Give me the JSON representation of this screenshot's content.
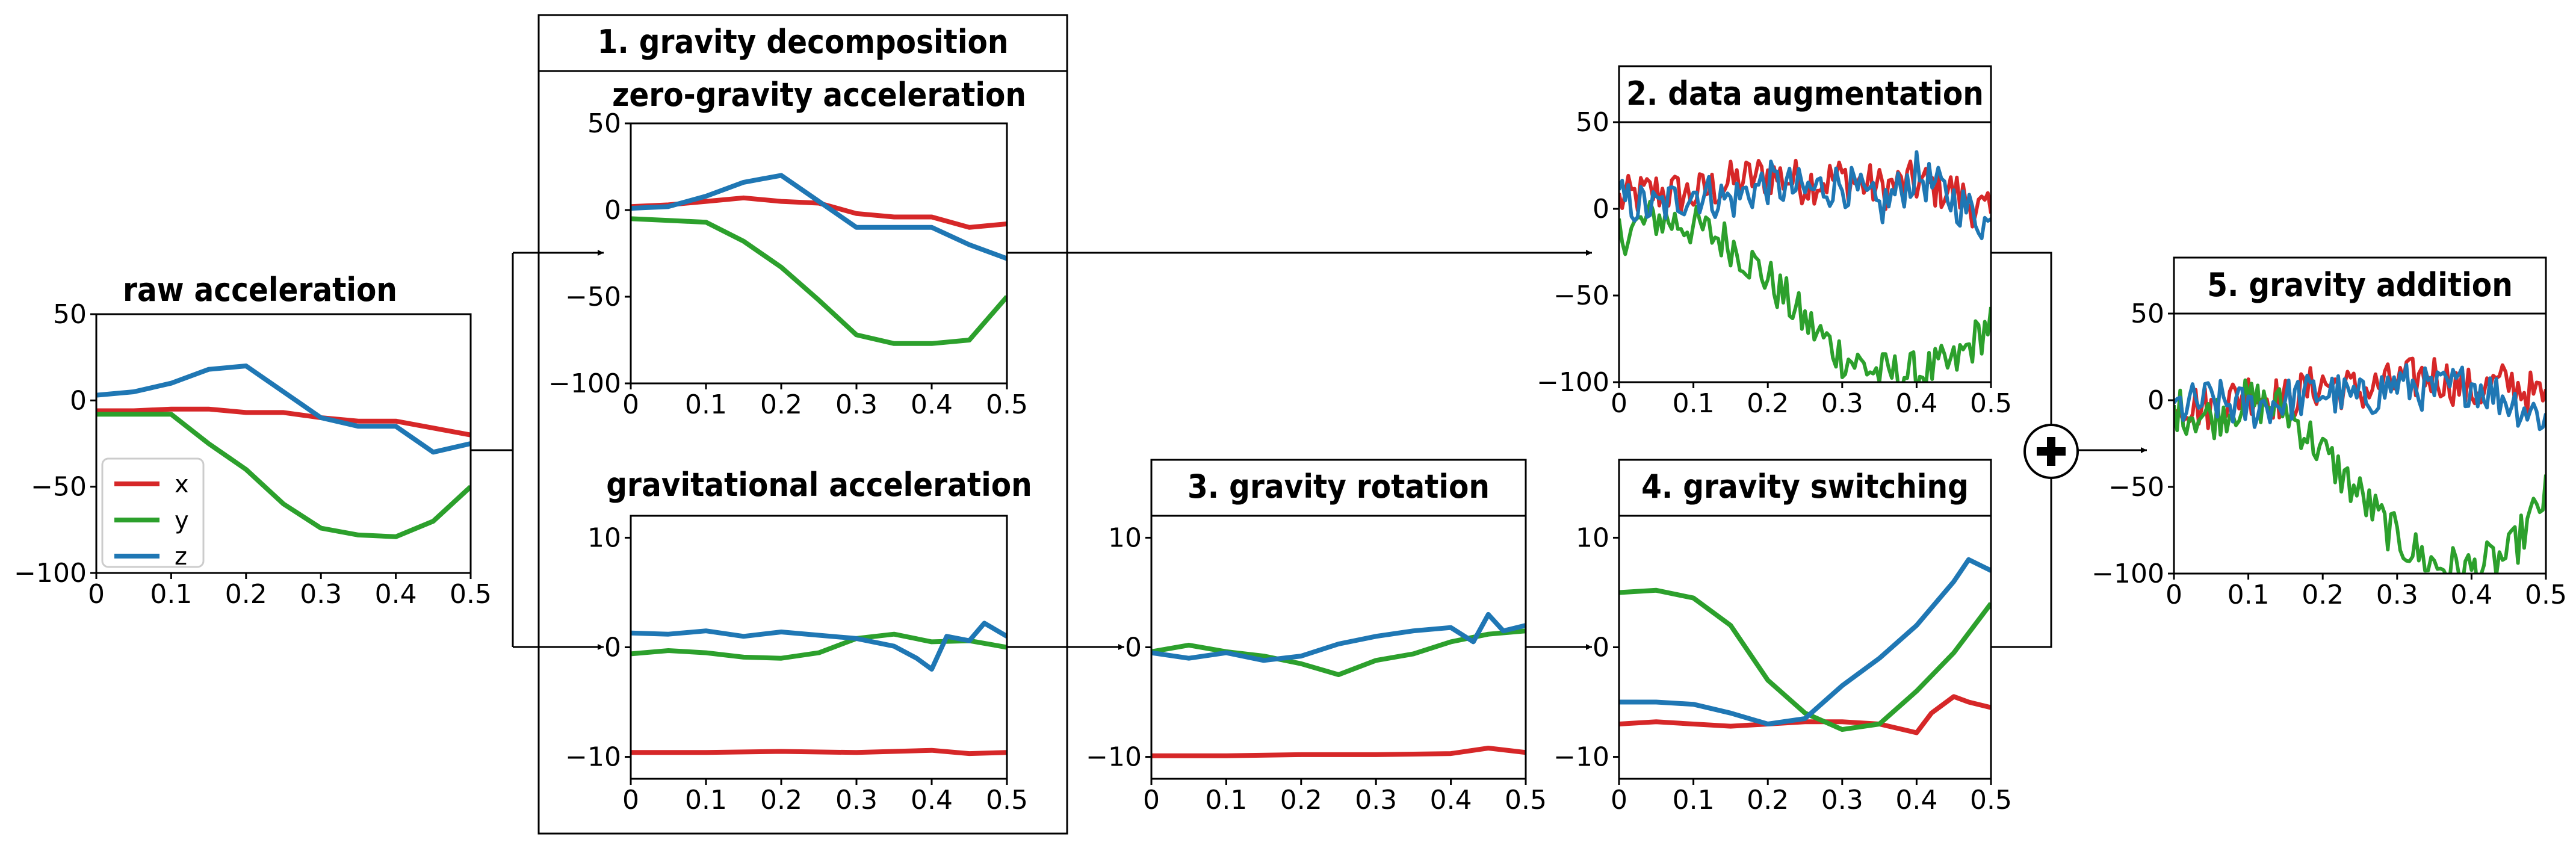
{
  "labels": {
    "raw_title": "raw acceleration",
    "gd_box_title": "1. gravity decomposition",
    "zero_g_title": "zero-gravity acceleration",
    "grav_title": "gravitational acceleration",
    "rot_title": "3. gravity rotation",
    "aug_title": "2. data augmentation",
    "switch_title": "4. gravity switching",
    "add_title": "5. gravity addition",
    "plus_symbol": "+"
  },
  "colors": {
    "x": "#d62728",
    "y": "#2ca02c",
    "z": "#1f77b4"
  },
  "chart_data": [
    {
      "id": "raw",
      "type": "line",
      "title": "raw acceleration",
      "xlim": [
        0,
        0.5
      ],
      "ylim": [
        -100,
        50
      ],
      "xticks": [
        "0",
        "0.1",
        "0.2",
        "0.3",
        "0.4",
        "0.5"
      ],
      "yticks": [
        {
          "v": 50,
          "label": "50"
        },
        {
          "v": 0,
          "label": "0"
        },
        {
          "v": -50,
          "label": "−50"
        },
        {
          "v": -100,
          "label": "−100"
        }
      ],
      "legend": [
        "x",
        "y",
        "z"
      ],
      "series": [
        {
          "name": "x",
          "x": [
            0,
            0.05,
            0.1,
            0.15,
            0.2,
            0.25,
            0.3,
            0.35,
            0.4,
            0.45,
            0.5
          ],
          "values": [
            -6,
            -6,
            -5,
            -5,
            -7,
            -7,
            -10,
            -12,
            -12,
            -16,
            -20
          ]
        },
        {
          "name": "y",
          "x": [
            0,
            0.05,
            0.1,
            0.15,
            0.2,
            0.25,
            0.3,
            0.35,
            0.4,
            0.45,
            0.5
          ],
          "values": [
            -8,
            -8,
            -8,
            -25,
            -40,
            -60,
            -74,
            -78,
            -79,
            -70,
            -50
          ]
        },
        {
          "name": "z",
          "x": [
            0,
            0.05,
            0.1,
            0.15,
            0.2,
            0.25,
            0.3,
            0.35,
            0.4,
            0.45,
            0.5
          ],
          "values": [
            3,
            5,
            10,
            18,
            20,
            5,
            -10,
            -15,
            -15,
            -30,
            -25
          ]
        }
      ]
    },
    {
      "id": "zero_g",
      "type": "line",
      "title": "zero-gravity acceleration",
      "xlim": [
        0,
        0.5
      ],
      "ylim": [
        -100,
        50
      ],
      "xticks": [
        "0",
        "0.1",
        "0.2",
        "0.3",
        "0.4",
        "0.5"
      ],
      "yticks": [
        {
          "v": 50,
          "label": "50"
        },
        {
          "v": 0,
          "label": "0"
        },
        {
          "v": -50,
          "label": "−50"
        },
        {
          "v": -100,
          "label": "−100"
        }
      ],
      "series": [
        {
          "name": "x",
          "x": [
            0,
            0.05,
            0.1,
            0.15,
            0.2,
            0.25,
            0.3,
            0.35,
            0.4,
            0.45,
            0.5
          ],
          "values": [
            2,
            3,
            5,
            7,
            5,
            4,
            -2,
            -4,
            -4,
            -10,
            -8
          ]
        },
        {
          "name": "y",
          "x": [
            0,
            0.05,
            0.1,
            0.15,
            0.2,
            0.25,
            0.3,
            0.35,
            0.4,
            0.45,
            0.5
          ],
          "values": [
            -5,
            -6,
            -7,
            -18,
            -33,
            -52,
            -72,
            -77,
            -77,
            -75,
            -50
          ]
        },
        {
          "name": "z",
          "x": [
            0,
            0.05,
            0.1,
            0.15,
            0.2,
            0.25,
            0.3,
            0.35,
            0.4,
            0.45,
            0.5
          ],
          "values": [
            1,
            2,
            8,
            16,
            20,
            5,
            -10,
            -10,
            -10,
            -20,
            -28
          ]
        }
      ]
    },
    {
      "id": "grav",
      "type": "line",
      "title": "gravitational acceleration",
      "xlim": [
        0,
        0.5
      ],
      "ylim": [
        -12,
        12
      ],
      "xticks": [
        "0",
        "0.1",
        "0.2",
        "0.3",
        "0.4",
        "0.5"
      ],
      "yticks": [
        {
          "v": 10,
          "label": "10"
        },
        {
          "v": 0,
          "label": "0"
        },
        {
          "v": -10,
          "label": "−10"
        }
      ],
      "series": [
        {
          "name": "x",
          "x": [
            0,
            0.1,
            0.2,
            0.3,
            0.4,
            0.45,
            0.5
          ],
          "values": [
            -9.6,
            -9.6,
            -9.5,
            -9.6,
            -9.4,
            -9.7,
            -9.6
          ]
        },
        {
          "name": "y",
          "x": [
            0,
            0.05,
            0.1,
            0.15,
            0.2,
            0.25,
            0.3,
            0.35,
            0.4,
            0.45,
            0.5
          ],
          "values": [
            -0.6,
            -0.3,
            -0.5,
            -0.9,
            -1.0,
            -0.5,
            0.8,
            1.2,
            0.5,
            0.6,
            0
          ]
        },
        {
          "name": "z",
          "x": [
            0,
            0.05,
            0.1,
            0.15,
            0.2,
            0.25,
            0.3,
            0.35,
            0.38,
            0.4,
            0.42,
            0.45,
            0.47,
            0.5
          ],
          "values": [
            1.3,
            1.2,
            1.5,
            1.0,
            1.4,
            1.1,
            0.8,
            0.1,
            -1.0,
            -2.0,
            1.0,
            0.6,
            2.2,
            1.0
          ]
        }
      ]
    },
    {
      "id": "rot",
      "type": "line",
      "title": "3. gravity rotation",
      "xlim": [
        0,
        0.5
      ],
      "ylim": [
        -12,
        12
      ],
      "xticks": [
        "0",
        "0.1",
        "0.2",
        "0.3",
        "0.4",
        "0.5"
      ],
      "yticks": [
        {
          "v": 10,
          "label": "10"
        },
        {
          "v": 0,
          "label": "0"
        },
        {
          "v": -10,
          "label": "−10"
        }
      ],
      "series": [
        {
          "name": "x",
          "x": [
            0,
            0.1,
            0.2,
            0.3,
            0.4,
            0.45,
            0.5
          ],
          "values": [
            -9.9,
            -9.9,
            -9.8,
            -9.8,
            -9.7,
            -9.2,
            -9.6
          ]
        },
        {
          "name": "y",
          "x": [
            0,
            0.05,
            0.1,
            0.15,
            0.2,
            0.25,
            0.3,
            0.35,
            0.4,
            0.45,
            0.5
          ],
          "values": [
            -0.4,
            0.2,
            -0.4,
            -0.8,
            -1.5,
            -2.5,
            -1.2,
            -0.6,
            0.5,
            1.2,
            1.5
          ]
        },
        {
          "name": "z",
          "x": [
            0,
            0.05,
            0.1,
            0.15,
            0.2,
            0.25,
            0.3,
            0.35,
            0.4,
            0.43,
            0.45,
            0.47,
            0.5
          ],
          "values": [
            -0.5,
            -1.0,
            -0.5,
            -1.2,
            -0.8,
            0.3,
            1.0,
            1.5,
            1.8,
            0.5,
            3.0,
            1.5,
            2.0
          ]
        }
      ]
    },
    {
      "id": "aug",
      "type": "line",
      "title": "2. data augmentation",
      "xlim": [
        0,
        0.5
      ],
      "ylim": [
        -100,
        50
      ],
      "xticks": [
        "0",
        "0.1",
        "0.2",
        "0.3",
        "0.4",
        "0.5"
      ],
      "yticks": [
        {
          "v": 50,
          "label": "50"
        },
        {
          "v": 0,
          "label": "0"
        },
        {
          "v": -50,
          "label": "−50"
        },
        {
          "v": -100,
          "label": "−100"
        }
      ],
      "series": [
        {
          "name": "x",
          "x": [
            0,
            0.05,
            0.1,
            0.15,
            0.2,
            0.25,
            0.3,
            0.35,
            0.4,
            0.45,
            0.5
          ],
          "values": [
            5,
            10,
            8,
            15,
            20,
            15,
            18,
            12,
            15,
            10,
            -5
          ]
        },
        {
          "name": "y",
          "x": [
            0,
            0.05,
            0.1,
            0.15,
            0.2,
            0.25,
            0.3,
            0.35,
            0.4,
            0.45,
            0.5
          ],
          "values": [
            -15,
            -5,
            -10,
            -20,
            -40,
            -65,
            -85,
            -95,
            -95,
            -90,
            -65
          ]
        },
        {
          "name": "z",
          "x": [
            0,
            0.05,
            0.1,
            0.15,
            0.2,
            0.25,
            0.3,
            0.35,
            0.4,
            0.45,
            0.5
          ],
          "values": [
            5,
            0,
            10,
            5,
            15,
            10,
            15,
            0,
            20,
            5,
            -10
          ]
        }
      ]
    },
    {
      "id": "switch",
      "type": "line",
      "title": "4. gravity switching",
      "xlim": [
        0,
        0.5
      ],
      "ylim": [
        -12,
        12
      ],
      "xticks": [
        "0",
        "0.1",
        "0.2",
        "0.3",
        "0.4",
        "0.5"
      ],
      "yticks": [
        {
          "v": 10,
          "label": "10"
        },
        {
          "v": 0,
          "label": "0"
        },
        {
          "v": -10,
          "label": "−10"
        }
      ],
      "series": [
        {
          "name": "x",
          "x": [
            0,
            0.05,
            0.1,
            0.15,
            0.2,
            0.25,
            0.3,
            0.35,
            0.4,
            0.42,
            0.45,
            0.47,
            0.5
          ],
          "values": [
            -7,
            -6.8,
            -7,
            -7.2,
            -7,
            -6.8,
            -6.8,
            -7,
            -7.8,
            -6,
            -4.5,
            -5,
            -5.5
          ]
        },
        {
          "name": "y",
          "x": [
            0,
            0.05,
            0.1,
            0.15,
            0.2,
            0.25,
            0.3,
            0.35,
            0.4,
            0.45,
            0.5
          ],
          "values": [
            5,
            5.2,
            4.5,
            2,
            -3,
            -6,
            -7.5,
            -7,
            -4,
            -0.5,
            4
          ]
        },
        {
          "name": "z",
          "x": [
            0,
            0.05,
            0.1,
            0.15,
            0.2,
            0.25,
            0.3,
            0.35,
            0.4,
            0.45,
            0.47,
            0.5
          ],
          "values": [
            -5,
            -5,
            -5.2,
            -6,
            -7,
            -6.5,
            -3.5,
            -1,
            2,
            6,
            8,
            7
          ]
        }
      ]
    },
    {
      "id": "add",
      "type": "line",
      "title": "5. gravity addition",
      "xlim": [
        0,
        0.5
      ],
      "ylim": [
        -100,
        50
      ],
      "xticks": [
        "0",
        "0.1",
        "0.2",
        "0.3",
        "0.4",
        "0.5"
      ],
      "yticks": [
        {
          "v": 50,
          "label": "50"
        },
        {
          "v": 0,
          "label": "0"
        },
        {
          "v": -50,
          "label": "−50"
        },
        {
          "v": -100,
          "label": "−100"
        }
      ],
      "series": [
        {
          "name": "x",
          "x": [
            0,
            0.05,
            0.1,
            0.15,
            0.2,
            0.25,
            0.3,
            0.35,
            0.4,
            0.45,
            0.5
          ],
          "values": [
            0,
            -5,
            5,
            0,
            10,
            5,
            10,
            15,
            5,
            10,
            0
          ]
        },
        {
          "name": "y",
          "x": [
            0,
            0.05,
            0.1,
            0.15,
            0.2,
            0.25,
            0.3,
            0.35,
            0.4,
            0.45,
            0.5
          ],
          "values": [
            -5,
            -10,
            0,
            -5,
            -30,
            -55,
            -80,
            -95,
            -98,
            -90,
            -55
          ]
        },
        {
          "name": "z",
          "x": [
            0,
            0.05,
            0.1,
            0.15,
            0.2,
            0.25,
            0.3,
            0.35,
            0.4,
            0.45,
            0.5
          ],
          "values": [
            -5,
            0,
            -5,
            0,
            5,
            0,
            10,
            5,
            10,
            0,
            -10
          ]
        }
      ]
    }
  ]
}
